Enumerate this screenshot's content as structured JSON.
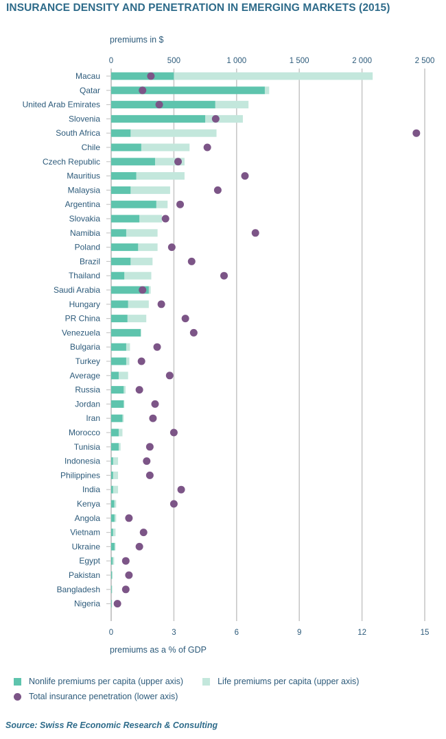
{
  "chart_data": {
    "type": "bar",
    "subtype": "stacked-horizontal-bar-with-dot-overlay",
    "title": "INSURANCE DENSITY AND PENETRATION IN EMERGING MARKETS (2015)",
    "upper_axis": {
      "label": "premiums in $",
      "range": [
        0,
        2500
      ],
      "ticks": [
        0,
        500,
        1000,
        1500,
        2000,
        2500
      ],
      "tick_labels": [
        "0",
        "500",
        "1 000",
        "1 500",
        "2 000",
        "2 500"
      ]
    },
    "lower_axis": {
      "label": "premiums as a % of GDP",
      "range": [
        0,
        15
      ],
      "ticks": [
        0,
        3,
        6,
        9,
        12,
        15
      ],
      "tick_labels": [
        "0",
        "3",
        "6",
        "9",
        "12",
        "15"
      ]
    },
    "grid": true,
    "legend_position": "bottom",
    "categories": [
      "Macau",
      "Qatar",
      "United Arab Emirates",
      "Slovenia",
      "South Africa",
      "Chile",
      "Czech Republic",
      "Mauritius",
      "Malaysia",
      "Argentina",
      "Slovakia",
      "Namibia",
      "Poland",
      "Brazil",
      "Thailand",
      "Saudi Arabia",
      "Hungary",
      "PR China",
      "Venezuela",
      "Bulgaria",
      "Turkey",
      "Average",
      "Russia",
      "Jordan",
      "Iran",
      "Morocco",
      "Tunisia",
      "Indonesia",
      "Philippines",
      "India",
      "Kenya",
      "Angola",
      "Vietnam",
      "Ukraine",
      "Egypt",
      "Pakistan",
      "Bangladesh",
      "Nigeria"
    ],
    "series": [
      {
        "name": "Nonlife premiums per capita (upper axis)",
        "axis": "upper",
        "color": "#5ec4ad",
        "values": [
          500,
          1225,
          830,
          750,
          155,
          240,
          350,
          200,
          155,
          360,
          225,
          120,
          215,
          155,
          105,
          300,
          135,
          130,
          235,
          120,
          120,
          60,
          100,
          100,
          90,
          60,
          60,
          15,
          15,
          15,
          25,
          27,
          15,
          27,
          12,
          6,
          4,
          4
        ]
      },
      {
        "name": "Life premiums per capita (upper axis)",
        "axis": "upper",
        "color": "#c3e7dc",
        "values": [
          1585,
          35,
          265,
          300,
          685,
          385,
          235,
          385,
          315,
          90,
          180,
          250,
          155,
          175,
          215,
          15,
          165,
          150,
          5,
          30,
          25,
          75,
          15,
          5,
          10,
          30,
          15,
          40,
          40,
          40,
          15,
          13,
          20,
          8,
          12,
          6,
          5,
          3
        ]
      },
      {
        "name": "Total insurance penetration (lower axis)",
        "axis": "lower",
        "color": "#7c5587",
        "values": [
          1.9,
          1.5,
          2.3,
          5.0,
          14.6,
          4.6,
          3.2,
          6.4,
          5.1,
          3.3,
          2.6,
          6.9,
          2.9,
          3.85,
          5.4,
          1.5,
          2.4,
          3.55,
          3.95,
          2.2,
          1.45,
          2.8,
          1.35,
          2.1,
          2.0,
          3.0,
          1.85,
          1.7,
          1.85,
          3.35,
          3.0,
          0.85,
          1.55,
          1.35,
          0.7,
          0.85,
          0.7,
          0.3
        ]
      }
    ]
  },
  "legend": {
    "nonlife": "Nonlife premiums per capita (upper axis)",
    "life": "Life premiums per capita (upper axis)",
    "penetration": "Total insurance penetration (lower axis)"
  },
  "colors": {
    "nonlife": "#5ec4ad",
    "life": "#c3e7dc",
    "penetration": "#7c5587",
    "text": "#2c5a7a",
    "grid": "#c8c8c8"
  },
  "source": "Source: Swiss Re Economic Research & Consulting"
}
